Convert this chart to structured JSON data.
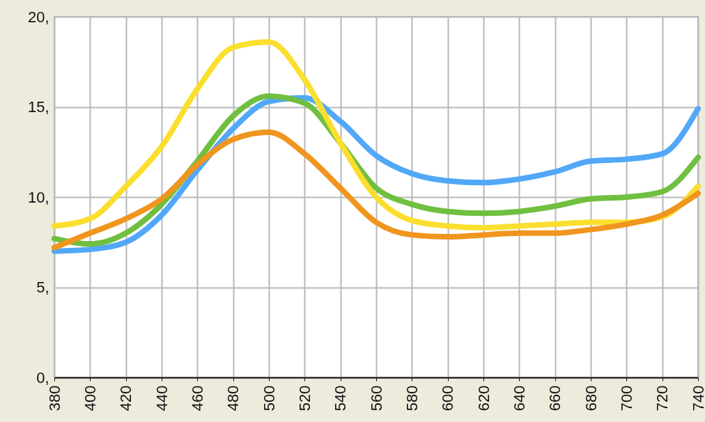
{
  "chart_data": {
    "type": "line",
    "x": [
      380,
      400,
      420,
      440,
      460,
      480,
      500,
      520,
      540,
      560,
      580,
      600,
      620,
      640,
      660,
      680,
      700,
      720,
      740
    ],
    "xlim": [
      380,
      740
    ],
    "xticks": [
      380,
      400,
      420,
      440,
      460,
      480,
      500,
      520,
      540,
      560,
      580,
      600,
      620,
      640,
      660,
      680,
      700,
      720,
      740
    ],
    "ylim": [
      0,
      20
    ],
    "yticks": [
      {
        "value": 0,
        "label": "0,"
      },
      {
        "value": 5,
        "label": "5,"
      },
      {
        "value": 10,
        "label": "10,"
      },
      {
        "value": 15,
        "label": "15,"
      },
      {
        "value": 20,
        "label": "20,"
      }
    ],
    "grid": true,
    "legend": false,
    "line_style": "solid",
    "marker": "none",
    "series": [
      {
        "color": "#52a8f7",
        "values": [
          7.0,
          7.1,
          7.5,
          9.0,
          11.5,
          13.8,
          15.3,
          15.5,
          14.2,
          12.3,
          11.3,
          10.9,
          10.8,
          11.0,
          11.4,
          12.0,
          12.1,
          12.4,
          14.9
        ]
      },
      {
        "color": "#70bf40",
        "values": [
          7.7,
          7.4,
          8.0,
          9.6,
          12.0,
          14.5,
          15.6,
          15.2,
          13.0,
          10.5,
          9.6,
          9.2,
          9.1,
          9.2,
          9.5,
          9.9,
          10.0,
          10.3,
          12.2
        ]
      },
      {
        "color": "#fbdf2e",
        "values": [
          8.4,
          8.8,
          10.6,
          12.8,
          16.0,
          18.3,
          18.6,
          16.5,
          13.0,
          10.0,
          8.7,
          8.4,
          8.3,
          8.4,
          8.5,
          8.6,
          8.6,
          8.9,
          10.6
        ]
      },
      {
        "color": "#f0951e",
        "values": [
          7.2,
          8.0,
          8.8,
          9.9,
          11.8,
          13.2,
          13.6,
          12.4,
          10.5,
          8.6,
          7.9,
          7.8,
          7.9,
          8.0,
          8.0,
          8.2,
          8.5,
          9.0,
          10.2
        ]
      }
    ]
  }
}
